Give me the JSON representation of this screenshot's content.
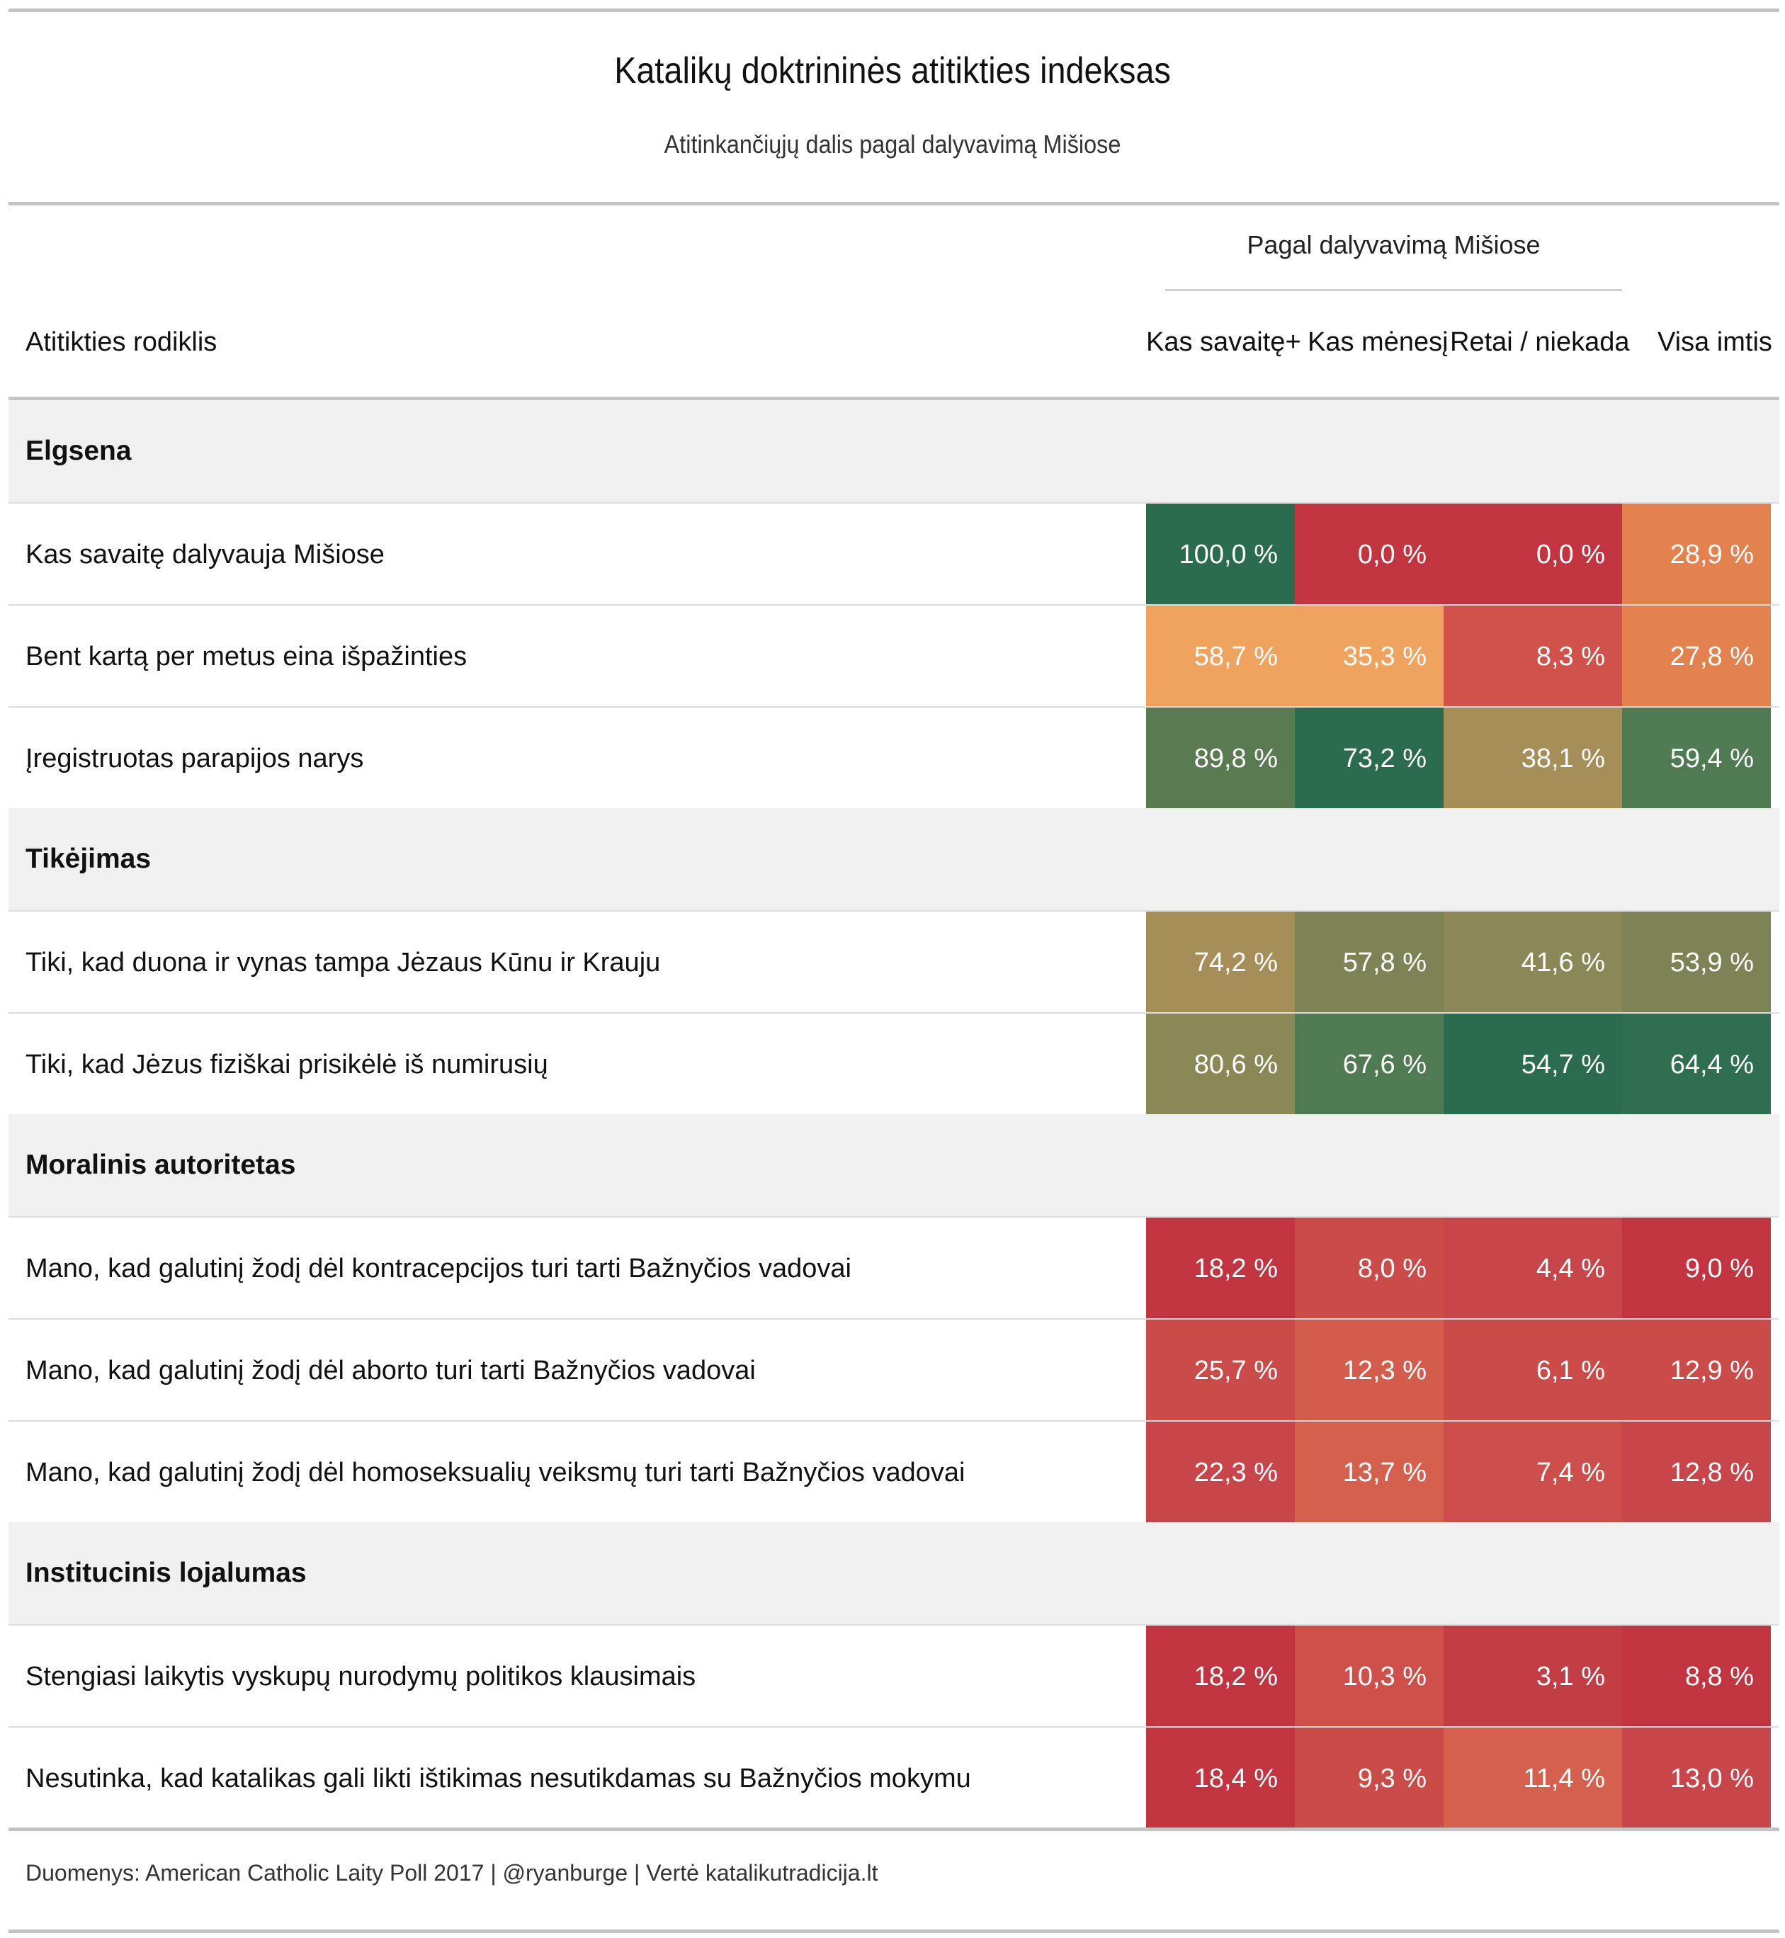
{
  "chart_data": {
    "type": "table",
    "title": "Katalikų doktrininės atitikties indeksas",
    "subtitle": "Atitinkančiųjų dalis pagal dalyvavimą Mišiose",
    "spanner": "Pagal dalyvavimą Mišiose",
    "stub_header": "Atitikties rodiklis",
    "columns": [
      "Kas savaitę+",
      "Kas mėnesį",
      "Retai / niekada",
      "Visa imtis"
    ],
    "groups": [
      {
        "name": "Elgsena",
        "rows": [
          {
            "label": "Kas savaitę dalyvauja Mišiose",
            "values": [
              100.0,
              0.0,
              0.0,
              28.9
            ],
            "display": [
              "100,0 %",
              "0,0 %",
              "0,0 %",
              "28,9 %"
            ],
            "colors": [
              "#2b6b4f",
              "#c23440",
              "#c23440",
              "#e4824f"
            ]
          },
          {
            "label": "Bent kartą per metus eina išpažinties",
            "values": [
              58.7,
              35.3,
              8.3,
              27.8
            ],
            "display": [
              "58,7 %",
              "35,3 %",
              "8,3 %",
              "27,8 %"
            ],
            "colors": [
              "#f0a35e",
              "#f0a35e",
              "#d0524a",
              "#e4824f"
            ]
          },
          {
            "label": "Įregistruotas parapijos narys",
            "values": [
              89.8,
              73.2,
              38.1,
              59.4
            ],
            "display": [
              "89,8 %",
              "73,2 %",
              "38,1 %",
              "59,4 %"
            ],
            "colors": [
              "#5a7a51",
              "#2b6b4f",
              "#a68e58",
              "#4f7a52"
            ]
          }
        ]
      },
      {
        "name": "Tikėjimas",
        "rows": [
          {
            "label": "Tiki, kad duona ir vynas tampa Jėzaus Kūnu ir Krauju",
            "values": [
              74.2,
              57.8,
              41.6,
              53.9
            ],
            "display": [
              "74,2 %",
              "57,8 %",
              "41,6 %",
              "53,9 %"
            ],
            "colors": [
              "#a68e58",
              "#7e8356",
              "#898856",
              "#7e8356"
            ]
          },
          {
            "label": "Tiki, kad Jėzus fiziškai prisikėlė iš numirusių",
            "values": [
              80.6,
              67.6,
              54.7,
              64.4
            ],
            "display": [
              "80,6 %",
              "67,6 %",
              "54,7 %",
              "64,4 %"
            ],
            "colors": [
              "#898856",
              "#4f7a52",
              "#2b6b4f",
              "#2f6e51"
            ]
          }
        ]
      },
      {
        "name": "Moralinis autoritetas",
        "rows": [
          {
            "label": "Mano, kad galutinį žodį dėl kontracepcijos turi tarti Bažnyčios vadovai",
            "values": [
              18.2,
              8.0,
              4.4,
              9.0
            ],
            "display": [
              "18,2 %",
              "8,0 %",
              "4,4 %",
              "9,0 %"
            ],
            "colors": [
              "#c23440",
              "#cb4b48",
              "#c8454a",
              "#c23440"
            ]
          },
          {
            "label": "Mano, kad galutinį žodį dėl aborto turi tarti Bažnyčios vadovai",
            "values": [
              25.7,
              12.3,
              6.1,
              12.9
            ],
            "display": [
              "25,7 %",
              "12,3 %",
              "6,1 %",
              "12,9 %"
            ],
            "colors": [
              "#cb4b48",
              "#d35c4c",
              "#cb4b48",
              "#cb4b48"
            ]
          },
          {
            "label": "Mano, kad galutinį žodį dėl homoseksualių veiksmų turi tarti Bažnyčios vadovai",
            "values": [
              22.3,
              13.7,
              7.4,
              12.8
            ],
            "display": [
              "22,3 %",
              "13,7 %",
              "7,4 %",
              "12,8 %"
            ],
            "colors": [
              "#c8454a",
              "#d5604e",
              "#cd4e4a",
              "#c8454a"
            ]
          }
        ]
      },
      {
        "name": "Institucinis lojalumas",
        "rows": [
          {
            "label": "Stengiasi laikytis vyskupų nurodymų politikos klausimais",
            "values": [
              18.2,
              10.3,
              3.1,
              8.8
            ],
            "display": [
              "18,2 %",
              "10,3 %",
              "3,1 %",
              "8,8 %"
            ],
            "colors": [
              "#c23440",
              "#cf4f4b",
              "#c23e44",
              "#c23440"
            ]
          },
          {
            "label": "Nesutinka, kad katalikas gali likti ištikimas nesutikdamas su Bažnyčios mokymu",
            "values": [
              18.4,
              9.3,
              11.4,
              13.0
            ],
            "display": [
              "18,4 %",
              "9,3 %",
              "11,4 %",
              "13,0 %"
            ],
            "colors": [
              "#c23440",
              "#cb4b48",
              "#d5604e",
              "#c8454a"
            ]
          }
        ]
      }
    ],
    "source": "Duomenys: American Catholic Laity Poll 2017 | @ryanburge | Vertė katalikutradicija.lt"
  }
}
